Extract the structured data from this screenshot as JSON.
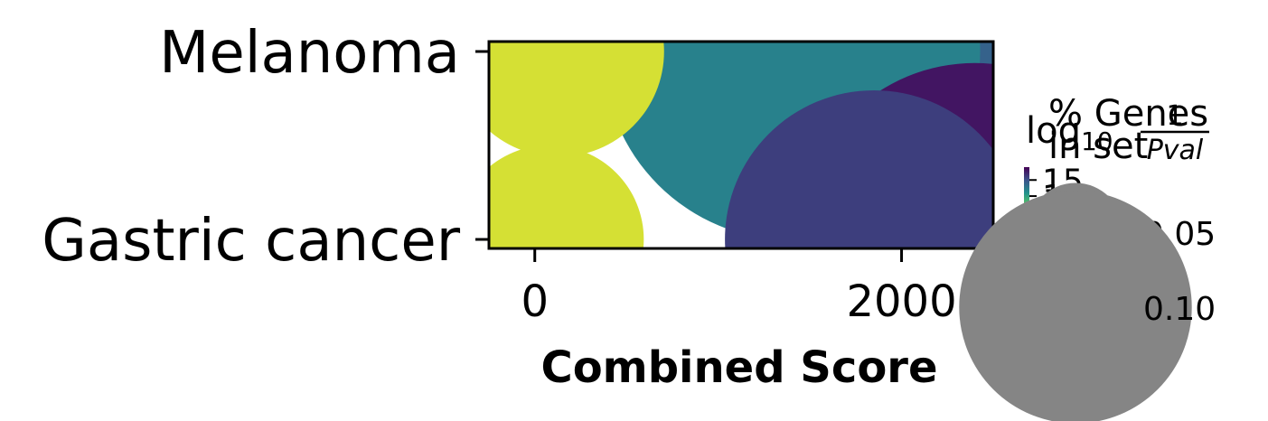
{
  "chart_data": {
    "type": "scatter",
    "xlabel": "Combined Score",
    "ylabel": "",
    "title": "",
    "xlim": [
      -250,
      2500
    ],
    "categories": [
      "Melanoma",
      "Gastric cancer"
    ],
    "x_ticks": [
      0,
      2000
    ],
    "x_tick_labels": [
      "0",
      "2000"
    ],
    "grid": false,
    "points": [
      {
        "term": "Melanoma",
        "combined_score": 130,
        "neg_log10_pval": 4,
        "pct_genes_in_set": 0.05
      },
      {
        "term": "Melanoma",
        "combined_score": 1400,
        "neg_log10_pval": 12,
        "pct_genes_in_set": 0.16
      },
      {
        "term": "Melanoma",
        "combined_score": 2050,
        "neg_log10_pval": 14,
        "pct_genes_in_set": 0.22
      },
      {
        "term": "Gastric cancer",
        "combined_score": 80,
        "neg_log10_pval": 4,
        "pct_genes_in_set": 0.04
      },
      {
        "term": "Gastric cancer",
        "combined_score": 1850,
        "neg_log10_pval": 16,
        "pct_genes_in_set": 0.1
      },
      {
        "term": "Gastric cancer",
        "combined_score": 2400,
        "neg_log10_pval": 18,
        "pct_genes_in_set": 0.14
      }
    ],
    "colorbar": {
      "title_main": "log",
      "title_sub": "10",
      "title_num": "1",
      "title_den": "Pval",
      "range": [
        3,
        19
      ],
      "ticks": [
        5,
        10,
        15
      ],
      "tick_labels": [
        "5",
        "10",
        "15"
      ],
      "colormap": "viridis"
    },
    "size_legend": {
      "title": "% Genes in set",
      "title_line1": "% Genes",
      "title_line2": "in set",
      "values": [
        0.05,
        0.1
      ],
      "labels": [
        "0.05",
        "0.10"
      ],
      "marker_color": "#858585"
    }
  }
}
